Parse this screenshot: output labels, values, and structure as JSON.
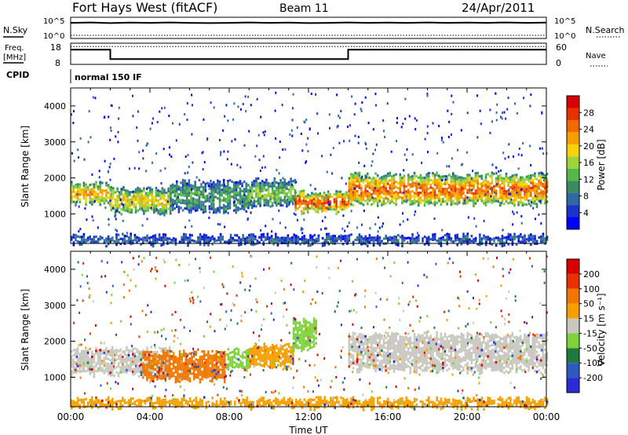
{
  "header": {
    "station": "Fort Hays West (fitACF)",
    "beam": "Beam 11",
    "date": "24/Apr/2011"
  },
  "panels": {
    "nsky_label": "N.Sky",
    "nsky_ticks": [
      "10^5",
      "10^0"
    ],
    "nsearch_label": "N.Search",
    "nsearch_ticks": [
      "10^5",
      "10^0"
    ],
    "freq_label_1": "Freq.",
    "freq_label_2": "[MHz]",
    "freq_ticks": [
      "18",
      "8"
    ],
    "nave_label": "Nave",
    "nave_ticks": [
      "60",
      "0"
    ],
    "cpid_label": "CPID",
    "cpid_value": "normal 150 IF"
  },
  "colors": {
    "power": [
      "#0000ff",
      "#1a33c8",
      "#2f6aa6",
      "#3a8a62",
      "#55b84a",
      "#9fd23c",
      "#f5d20a",
      "#f5a000",
      "#f06a00",
      "#e83000",
      "#d80000"
    ],
    "velocity": [
      "#2b2bd6",
      "#2e5ac0",
      "#1e7a3e",
      "#7ed23a",
      "#c8c8c0",
      "#f5a000",
      "#f07800",
      "#e83000",
      "#d80000"
    ]
  },
  "chart_data": [
    {
      "type": "line",
      "name": "N.Sky / N.Search",
      "x_unit": "hour UT",
      "x": [
        0,
        1,
        2,
        3,
        4,
        5,
        6,
        7,
        8,
        9,
        10,
        11,
        12,
        13,
        14,
        15,
        16,
        17,
        18,
        19,
        20,
        21,
        22,
        23,
        24
      ],
      "series": [
        {
          "name": "N.Sky",
          "values": [
            30000,
            40000,
            25000,
            35000,
            30000,
            40000,
            30000,
            25000,
            30000,
            40000,
            30000,
            35000,
            25000,
            30000,
            40000,
            30000,
            35000,
            30000,
            40000,
            30000,
            35000,
            30000,
            40000,
            30000,
            35000
          ]
        },
        {
          "name": "N.Search",
          "values": [
            1,
            1,
            1,
            1,
            1,
            1,
            1,
            1,
            1,
            1,
            1,
            1,
            1,
            1,
            1,
            1,
            1,
            1,
            1,
            1,
            1,
            1,
            1,
            1,
            1
          ]
        }
      ],
      "ylim": [
        1,
        100000
      ],
      "scale": "log"
    },
    {
      "type": "line",
      "name": "Freq. / Nave",
      "x": [
        0,
        2.0,
        2.0,
        14.0,
        14.0,
        24
      ],
      "series": [
        {
          "name": "Freq.",
          "values": [
            15,
            15,
            10,
            10,
            15,
            15
          ]
        },
        {
          "name": "Nave",
          "values": [
            52,
            52,
            52,
            52,
            52,
            52
          ]
        }
      ],
      "ylim": [
        8,
        18
      ],
      "ylim_right": [
        0,
        60
      ]
    },
    {
      "type": "heatmap",
      "name": "Power",
      "ylabel": "Slant Range [km]",
      "colorbar_label": "Power [dB]",
      "colorbar_ticks": [
        4,
        8,
        12,
        16,
        20,
        24,
        28
      ],
      "yticks": [
        1000,
        2000,
        3000,
        4000
      ],
      "ylim": [
        180,
        4500
      ],
      "xlim": [
        0,
        24
      ],
      "bands": [
        {
          "t0": 0.0,
          "t1": 2.0,
          "r0": 1300,
          "r1": 1850,
          "level": 0.7
        },
        {
          "t0": 2.0,
          "t1": 5.0,
          "r0": 1050,
          "r1": 1700,
          "level": 0.6
        },
        {
          "t0": 5.0,
          "t1": 9.0,
          "r0": 1100,
          "r1": 1900,
          "level": 0.35
        },
        {
          "t0": 9.0,
          "t1": 11.3,
          "r0": 1250,
          "r1": 1950,
          "level": 0.45
        },
        {
          "t0": 11.3,
          "t1": 14.0,
          "r0": 1100,
          "r1": 1600,
          "level": 0.85
        },
        {
          "t0": 14.0,
          "t1": 24.0,
          "r0": 1300,
          "r1": 2100,
          "level": 0.8
        },
        {
          "t0": 0.0,
          "t1": 24.0,
          "r0": 200,
          "r1": 400,
          "level": 0.2
        }
      ]
    },
    {
      "type": "heatmap",
      "name": "Velocity",
      "ylabel": "Slant Range [km]",
      "xlabel": "Time UT",
      "colorbar_label": "Velocity [m s⁻¹]",
      "colorbar_ticks": [
        "200",
        "100",
        "50",
        "15",
        "-15",
        "-50",
        "-100",
        "-200"
      ],
      "yticks": [
        1000,
        2000,
        3000,
        4000
      ],
      "xticks": [
        "00:00",
        "04:00",
        "08:00",
        "12:00",
        "16:00",
        "20:00",
        "00:00"
      ],
      "ylim": [
        180,
        4500
      ],
      "xlim": [
        0,
        24
      ],
      "bands": [
        {
          "t0": 0.0,
          "t1": 5.0,
          "r0": 1100,
          "r1": 1800,
          "level": 4
        },
        {
          "t0": 3.6,
          "t1": 7.8,
          "r0": 950,
          "r1": 1700,
          "level": 6
        },
        {
          "t0": 7.8,
          "t1": 9.0,
          "r0": 1250,
          "r1": 1750,
          "level": 3
        },
        {
          "t0": 9.0,
          "t1": 11.2,
          "r0": 1300,
          "r1": 1900,
          "level": 5
        },
        {
          "t0": 11.2,
          "t1": 12.4,
          "r0": 1800,
          "r1": 2600,
          "level": 3
        },
        {
          "t0": 14.0,
          "t1": 24.0,
          "r0": 1200,
          "r1": 2200,
          "level": 4
        },
        {
          "t0": 0.0,
          "t1": 24.0,
          "r0": 200,
          "r1": 400,
          "level": 5
        }
      ]
    }
  ]
}
